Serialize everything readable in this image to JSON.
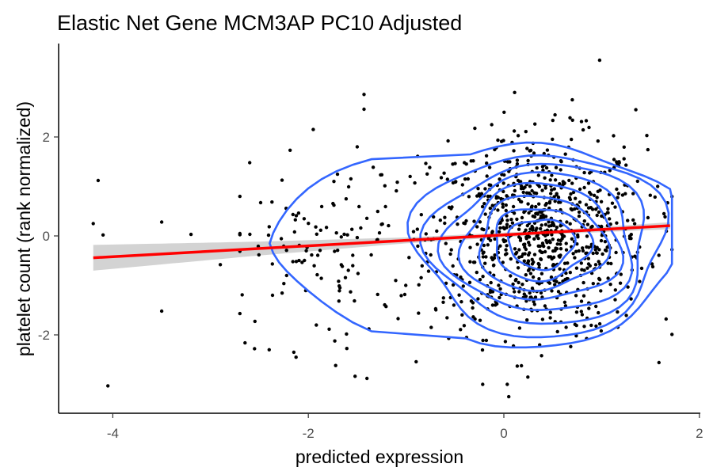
{
  "chart_data": {
    "type": "scatter",
    "title": "Elastic Net Gene MCM3AP PC10 Adjusted",
    "xlabel": "predicted expression",
    "ylabel": "platelet count (rank normalized)",
    "xlim": [
      -4.3,
      2.0
    ],
    "ylim": [
      -3.6,
      3.9
    ],
    "x_ticks": [
      -4,
      -2,
      0,
      2
    ],
    "x_tick_labels": [
      "-4",
      "-2",
      "0",
      "2"
    ],
    "y_ticks": [
      -2,
      0,
      2
    ],
    "y_tick_labels": [
      "-2",
      "0",
      "2"
    ],
    "grid": false,
    "legend": "none",
    "series": [
      {
        "kind": "points",
        "color": "#000000",
        "n_points": 1000,
        "clusters": [
          {
            "x_mean": 0.35,
            "x_sd": 0.55,
            "y_mean": 0.0,
            "y_sd": 1.0,
            "share": 0.88
          },
          {
            "x_mean": -1.8,
            "x_sd": 0.55,
            "y_mean": -0.35,
            "y_sd": 0.95,
            "share": 0.12
          }
        ],
        "outliers": [
          [
            -4.2,
            0.25
          ],
          [
            -4.15,
            1.12
          ],
          [
            -4.1,
            0.02
          ],
          [
            -4.05,
            -3.03
          ],
          [
            -3.5,
            0.28
          ],
          [
            -3.5,
            -1.52
          ],
          [
            -3.2,
            0.03
          ],
          [
            -2.9,
            -0.58
          ],
          [
            -2.6,
            1.48
          ],
          [
            -1.95,
            2.15
          ],
          [
            -1.5,
            1.8
          ],
          [
            -1.43,
            2.86
          ],
          [
            -1.43,
            2.56
          ],
          [
            -1.4,
            -2.88
          ],
          [
            -2.4,
            -2.3
          ],
          [
            -2.55,
            -2.28
          ],
          [
            0.05,
            -3.25
          ],
          [
            0.98,
            3.55
          ],
          [
            0.7,
            2.75
          ],
          [
            1.35,
            2.55
          ]
        ]
      },
      {
        "kind": "regression",
        "color": "#ff0000",
        "band_color": "#c8c8c8",
        "x_range": [
          -4.2,
          1.7
        ],
        "intercept": 0.02,
        "slope": 0.11,
        "ci_halfwidth_at": [
          [
            -4.2,
            0.26
          ],
          [
            -2.5,
            0.14
          ],
          [
            -1.0,
            0.06
          ],
          [
            0.5,
            0.04
          ],
          [
            1.7,
            0.07
          ]
        ]
      },
      {
        "kind": "density2d",
        "color": "#3366ff",
        "contour_levels": 8
      }
    ]
  }
}
